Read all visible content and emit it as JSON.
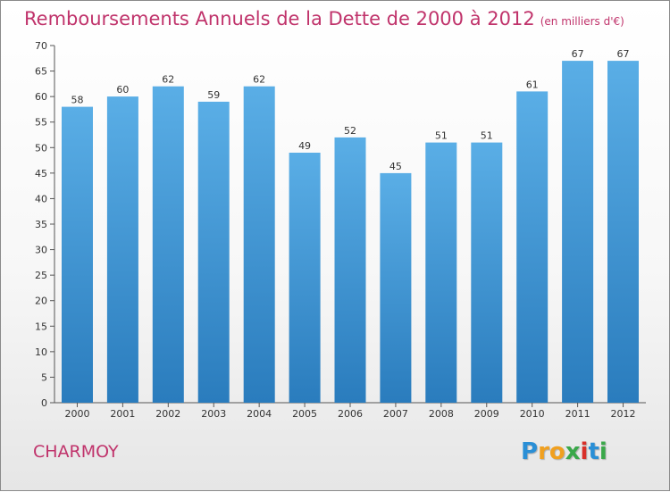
{
  "chart_data": {
    "type": "bar",
    "title": "Remboursements Annuels de la Dette de 2000 à 2012",
    "unit_note": "(en milliers d'€)",
    "categories": [
      "2000",
      "2001",
      "2002",
      "2003",
      "2004",
      "2005",
      "2006",
      "2007",
      "2008",
      "2009",
      "2010",
      "2011",
      "2012"
    ],
    "values": [
      58,
      60,
      62,
      59,
      62,
      49,
      52,
      45,
      51,
      51,
      61,
      67,
      67
    ],
    "ylim": [
      0,
      70
    ],
    "ytick_step": 5,
    "grid": false,
    "bar_color_top": "#5aaee6",
    "bar_color_bottom": "#2a7cbd"
  },
  "commune": "CHARMOY",
  "logo": {
    "text": "Proxiti",
    "letters": [
      {
        "ch": "P",
        "color": "#2a8fd6"
      },
      {
        "ch": "r",
        "color": "#f0a020"
      },
      {
        "ch": "o",
        "color": "#f0a020"
      },
      {
        "ch": "x",
        "color": "#3aa84a"
      },
      {
        "ch": "i",
        "color": "#d8302a"
      },
      {
        "ch": "t",
        "color": "#2a8fd6"
      },
      {
        "ch": "i",
        "color": "#3aa84a"
      }
    ]
  }
}
